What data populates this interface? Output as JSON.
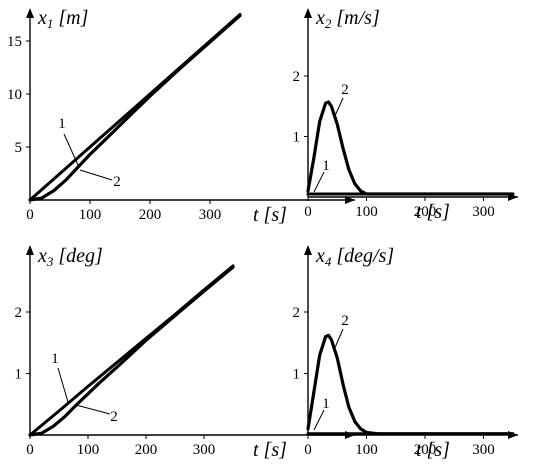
{
  "chart_data": [
    {
      "type": "line",
      "ylabel": "x₁ [m]",
      "xlabel": "t [s]",
      "xlim": [
        0,
        350
      ],
      "ylim": [
        0,
        17.5
      ],
      "xticks": [
        0,
        100,
        200,
        300
      ],
      "yticks": [
        5,
        10,
        15
      ],
      "series": [
        {
          "name": "1",
          "x": [
            0,
            50,
            100,
            150,
            200,
            250,
            300,
            350
          ],
          "y": [
            0,
            2.5,
            5,
            7.5,
            10,
            12.5,
            15,
            17.5
          ]
        },
        {
          "name": "2",
          "x": [
            0,
            20,
            40,
            60,
            80,
            100,
            120,
            140,
            160,
            200,
            250,
            300,
            350
          ],
          "y": [
            0,
            0.2,
            0.9,
            1.9,
            3.1,
            4.3,
            5.4,
            6.5,
            7.6,
            9.8,
            12.4,
            14.9,
            17.4
          ]
        }
      ]
    },
    {
      "type": "line",
      "ylabel": "x₂ [m/s]",
      "xlabel": "t [s]",
      "xlim": [
        0,
        350
      ],
      "ylim": [
        0,
        2.5
      ],
      "xticks": [
        0,
        100,
        200,
        300
      ],
      "yticks": [
        1,
        2
      ],
      "series": [
        {
          "name": "1",
          "x": [
            0,
            350
          ],
          "y": [
            0.05,
            0.05
          ]
        },
        {
          "name": "2",
          "x": [
            0,
            10,
            20,
            30,
            35,
            40,
            50,
            60,
            70,
            80,
            90,
            100,
            120,
            350
          ],
          "y": [
            0.1,
            0.65,
            1.25,
            1.55,
            1.57,
            1.5,
            1.2,
            0.8,
            0.45,
            0.22,
            0.1,
            0.05,
            0.05,
            0.05
          ]
        }
      ]
    },
    {
      "type": "line",
      "ylabel": "x₃ [deg]",
      "xlabel": "t [s]",
      "xlim": [
        0,
        350
      ],
      "ylim": [
        0,
        2.75
      ],
      "xticks": [
        0,
        100,
        200,
        300
      ],
      "yticks": [
        1,
        2
      ],
      "series": [
        {
          "name": "1",
          "x": [
            0,
            50,
            100,
            150,
            200,
            250,
            300,
            350
          ],
          "y": [
            0,
            0.39,
            0.79,
            1.18,
            1.57,
            1.96,
            2.36,
            2.75
          ]
        },
        {
          "name": "2",
          "x": [
            0,
            20,
            40,
            60,
            80,
            100,
            120,
            140,
            160,
            200,
            250,
            300,
            350
          ],
          "y": [
            0,
            0.03,
            0.14,
            0.3,
            0.49,
            0.67,
            0.85,
            1.02,
            1.19,
            1.54,
            1.94,
            2.34,
            2.73
          ]
        }
      ]
    },
    {
      "type": "line",
      "ylabel": "x₄ [deg/s]",
      "xlabel": "t [s]",
      "xlim": [
        0,
        350
      ],
      "ylim": [
        0,
        2.5
      ],
      "xticks": [
        0,
        100,
        200,
        300
      ],
      "yticks": [
        1,
        2
      ],
      "series": [
        {
          "name": "1",
          "x": [
            0,
            350
          ],
          "y": [
            0.02,
            0.02
          ]
        },
        {
          "name": "2",
          "x": [
            0,
            10,
            20,
            30,
            35,
            40,
            50,
            60,
            70,
            80,
            90,
            100,
            120,
            350
          ],
          "y": [
            0.1,
            0.7,
            1.3,
            1.6,
            1.62,
            1.55,
            1.25,
            0.82,
            0.45,
            0.22,
            0.1,
            0.04,
            0.02,
            0.02
          ]
        }
      ]
    }
  ]
}
